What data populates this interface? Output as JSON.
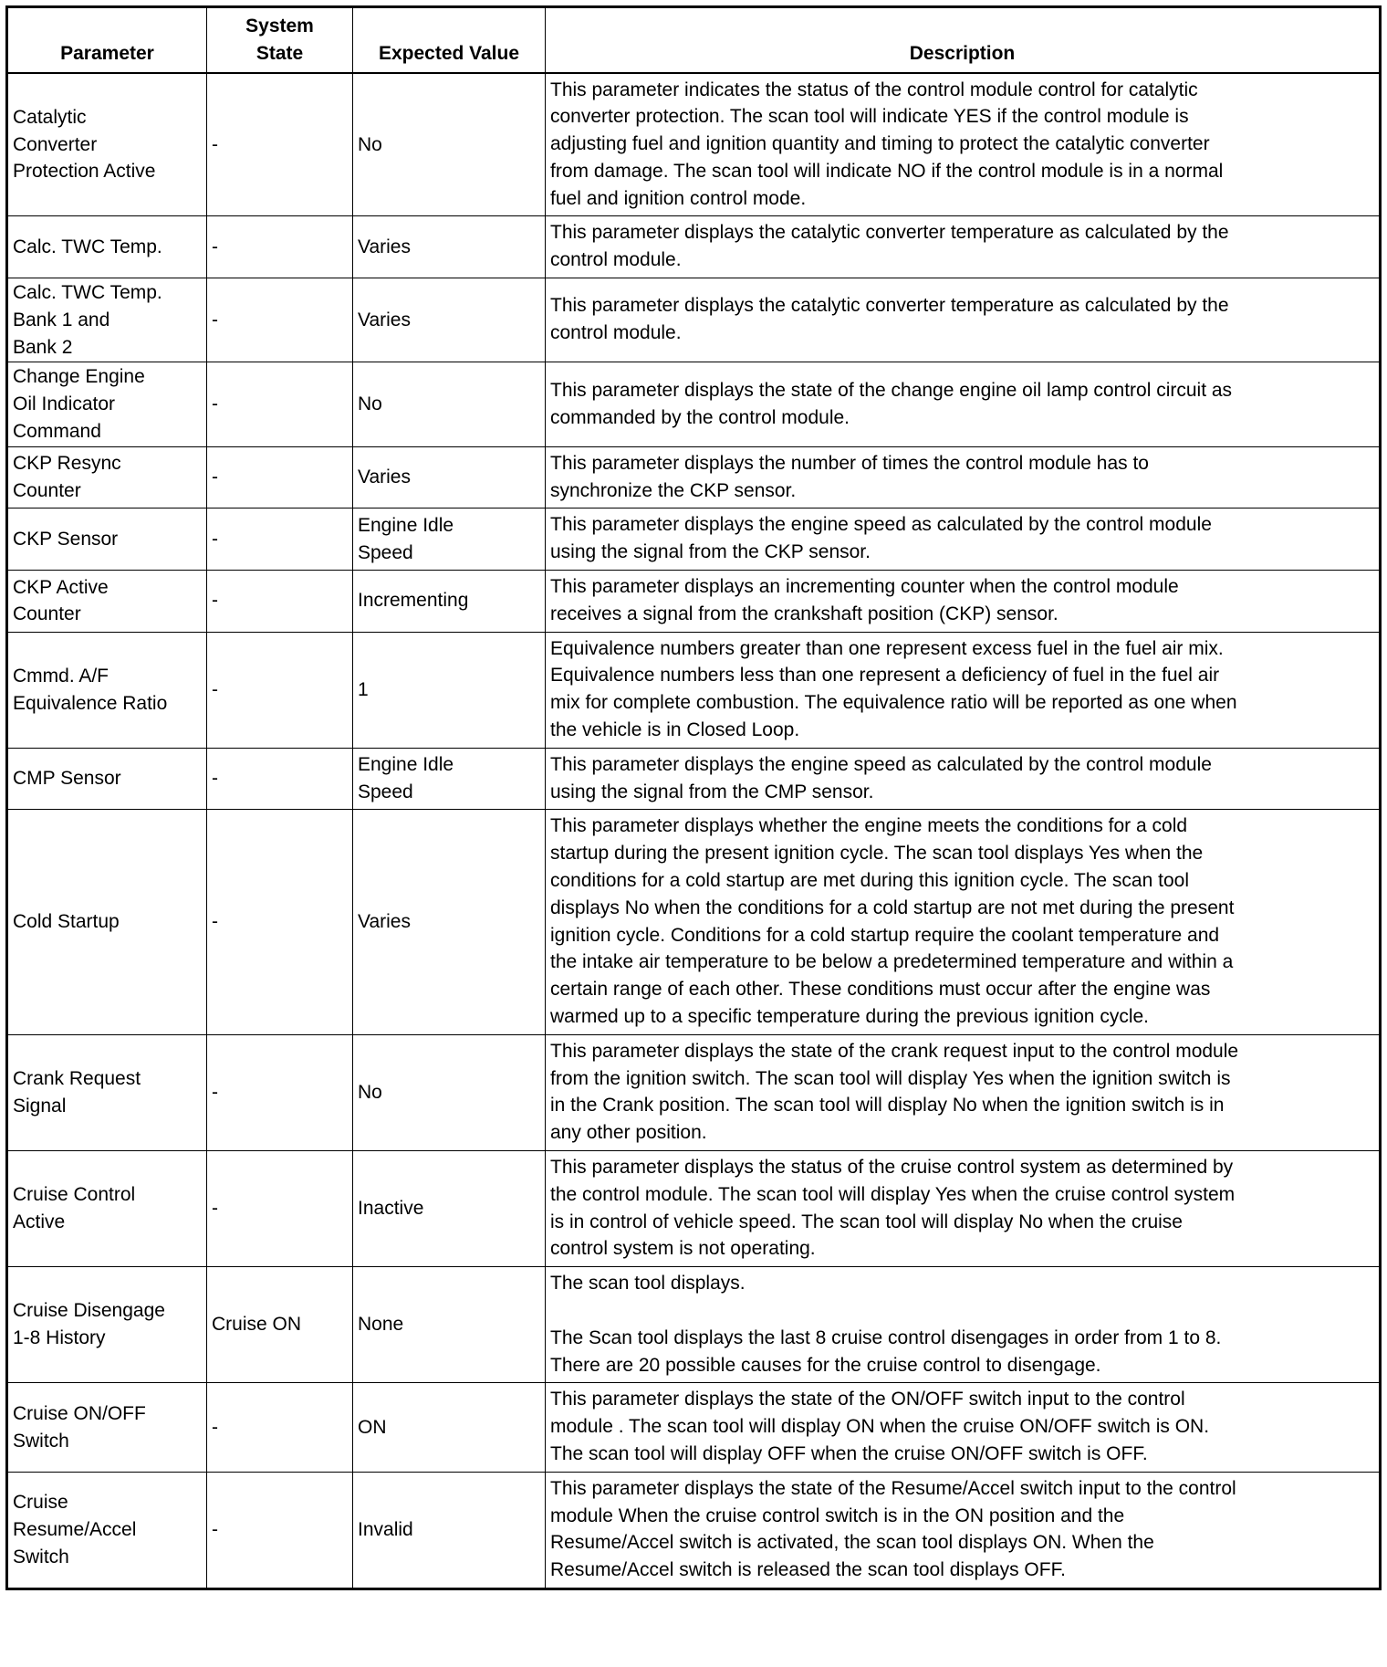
{
  "table": {
    "headers": [
      [
        "Parameter"
      ],
      [
        "System",
        "State"
      ],
      [
        "Expected Value"
      ],
      [
        "Description"
      ]
    ],
    "rows": [
      {
        "parameter": [
          "Catalytic",
          "Converter",
          "Protection Active"
        ],
        "system_state": [
          "-"
        ],
        "expected_value": [
          "No"
        ],
        "description": [
          "This parameter indicates the status of the control module control for catalytic",
          "converter protection. The scan tool will indicate YES if the control module is",
          "adjusting fuel and ignition quantity and timing to protect the catalytic converter",
          "from damage. The scan tool will indicate NO if the control module is in a normal",
          "fuel and ignition control mode."
        ]
      },
      {
        "parameter": [
          "Calc. TWC Temp."
        ],
        "system_state": [
          "-"
        ],
        "expected_value": [
          "Varies"
        ],
        "description": [
          "This parameter displays the catalytic converter temperature as calculated by the",
          "control module."
        ]
      },
      {
        "parameter": [
          "Calc. TWC Temp.",
          "Bank 1 and",
          "Bank 2"
        ],
        "system_state": [
          "-"
        ],
        "expected_value": [
          "Varies"
        ],
        "description": [
          "This parameter displays the catalytic converter temperature as calculated by the",
          "control module."
        ]
      },
      {
        "parameter": [
          "Change Engine",
          "Oil Indicator",
          "Command"
        ],
        "system_state": [
          "-"
        ],
        "expected_value": [
          "No"
        ],
        "description": [
          "This parameter displays the state of the change engine oil lamp control circuit as",
          "commanded by the control module."
        ]
      },
      {
        "parameter": [
          "CKP Resync",
          "Counter"
        ],
        "system_state": [
          "-"
        ],
        "expected_value": [
          "Varies"
        ],
        "description": [
          "This parameter displays the number of times the control module has to",
          "synchronize the CKP sensor."
        ]
      },
      {
        "parameter": [
          "CKP Sensor"
        ],
        "system_state": [
          "-"
        ],
        "expected_value": [
          "Engine Idle",
          "Speed"
        ],
        "description": [
          "This parameter displays the engine speed as calculated by the control module",
          "using the signal from the CKP sensor."
        ]
      },
      {
        "parameter": [
          "CKP Active",
          "Counter"
        ],
        "system_state": [
          "-"
        ],
        "expected_value": [
          "Incrementing"
        ],
        "description": [
          "This parameter displays an incrementing counter when the control module",
          "receives a signal from the crankshaft position (CKP) sensor."
        ]
      },
      {
        "parameter": [
          "Cmmd. A/F",
          "Equivalence Ratio"
        ],
        "system_state": [
          "-"
        ],
        "expected_value": [
          "1"
        ],
        "description": [
          "Equivalence numbers greater than one represent excess fuel in the fuel air mix.",
          "Equivalence numbers less than one represent a deficiency of fuel in the fuel air",
          "mix for complete combustion. The equivalence ratio will be reported as one when",
          "the vehicle is in Closed Loop."
        ]
      },
      {
        "parameter": [
          "CMP Sensor"
        ],
        "system_state": [
          "-"
        ],
        "expected_value": [
          "Engine Idle",
          "Speed"
        ],
        "description": [
          "This parameter displays the engine speed as calculated by the control module",
          "using the signal from the CMP sensor."
        ]
      },
      {
        "parameter": [
          "Cold Startup"
        ],
        "system_state": [
          "-"
        ],
        "expected_value": [
          "Varies"
        ],
        "description": [
          "This parameter displays whether the engine meets the conditions for a cold",
          "startup during the present ignition cycle. The scan tool displays Yes when the",
          "conditions for a cold startup are met during this ignition cycle. The scan tool",
          "displays No when the conditions for a cold startup are not met during the present",
          "ignition cycle. Conditions for a cold startup require the coolant temperature and",
          "the intake air temperature to be below a predetermined temperature and within a",
          "certain range of each other. These conditions must occur after the engine was",
          "warmed up to a specific temperature during the previous ignition cycle."
        ]
      },
      {
        "parameter": [
          "Crank Request",
          "Signal"
        ],
        "system_state": [
          "-"
        ],
        "expected_value": [
          "No"
        ],
        "description": [
          "This parameter displays the state of the crank request input to the control module",
          "from the ignition switch. The scan tool will display Yes when the ignition switch is",
          "in the Crank position. The scan tool will display No when the ignition switch is in",
          "any other position."
        ]
      },
      {
        "parameter": [
          "Cruise Control",
          "Active"
        ],
        "system_state": [
          "-"
        ],
        "expected_value": [
          "Inactive"
        ],
        "description": [
          "This parameter displays the status of the cruise control system as determined by",
          "the control module. The scan tool will display Yes when the cruise control system",
          "is in control of vehicle speed. The scan tool will display No when the cruise",
          "control system is not operating."
        ]
      },
      {
        "parameter": [
          "Cruise Disengage",
          "1-8 History"
        ],
        "system_state": [
          "Cruise ON"
        ],
        "expected_value": [
          "None"
        ],
        "description": [
          "The scan tool displays.",
          "",
          "The Scan tool displays the last 8 cruise control disengages in order from 1 to 8.",
          "There are 20 possible causes for the cruise control to disengage."
        ]
      },
      {
        "parameter": [
          "Cruise ON/OFF",
          "Switch"
        ],
        "system_state": [
          "-"
        ],
        "expected_value": [
          "ON"
        ],
        "description": [
          "This parameter displays the state of the ON/OFF switch input to the control",
          "module . The scan tool will display ON when the cruise ON/OFF switch is ON.",
          "The scan tool will display OFF when the cruise ON/OFF switch is OFF."
        ]
      },
      {
        "parameter": [
          "Cruise",
          "Resume/Accel",
          "Switch"
        ],
        "system_state": [
          "-"
        ],
        "expected_value": [
          "Invalid"
        ],
        "description": [
          "This parameter displays the state of the Resume/Accel switch input to the control",
          "module When the cruise control switch is in the ON position and the",
          "Resume/Accel switch is activated, the scan tool displays ON. When the",
          "Resume/Accel switch is released the scan tool displays OFF."
        ]
      }
    ]
  }
}
